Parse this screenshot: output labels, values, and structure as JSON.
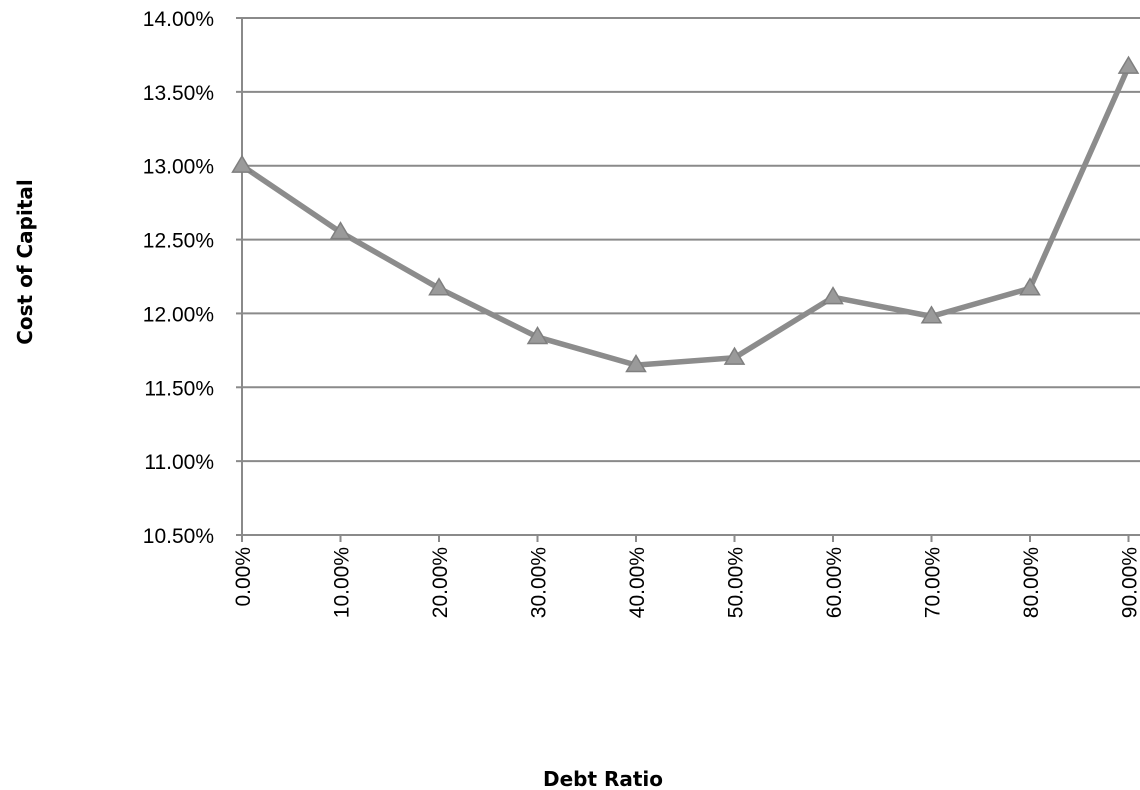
{
  "chart_data": {
    "type": "line",
    "title": "",
    "xlabel": "Debt Ratio",
    "ylabel": "Cost of Capital",
    "categories": [
      "0.00%",
      "10.00%",
      "20.00%",
      "30.00%",
      "40.00%",
      "50.00%",
      "60.00%",
      "70.00%",
      "80.00%",
      "90.00%"
    ],
    "series": [
      {
        "values": [
          13.0,
          12.55,
          12.17,
          11.84,
          11.65,
          11.7,
          12.11,
          11.98,
          12.17,
          13.67
        ],
        "marker": "triangle",
        "color": "#8c8c8c"
      }
    ],
    "ylim": [
      10.5,
      14.0
    ],
    "yticks": [
      "10.50%",
      "11.00%",
      "11.50%",
      "12.00%",
      "12.50%",
      "13.00%",
      "13.50%",
      "14.00%"
    ],
    "ytick_values": [
      10.5,
      11.0,
      11.5,
      12.0,
      12.5,
      13.0,
      13.5,
      14.0
    ],
    "grid": true,
    "legend": "none"
  }
}
